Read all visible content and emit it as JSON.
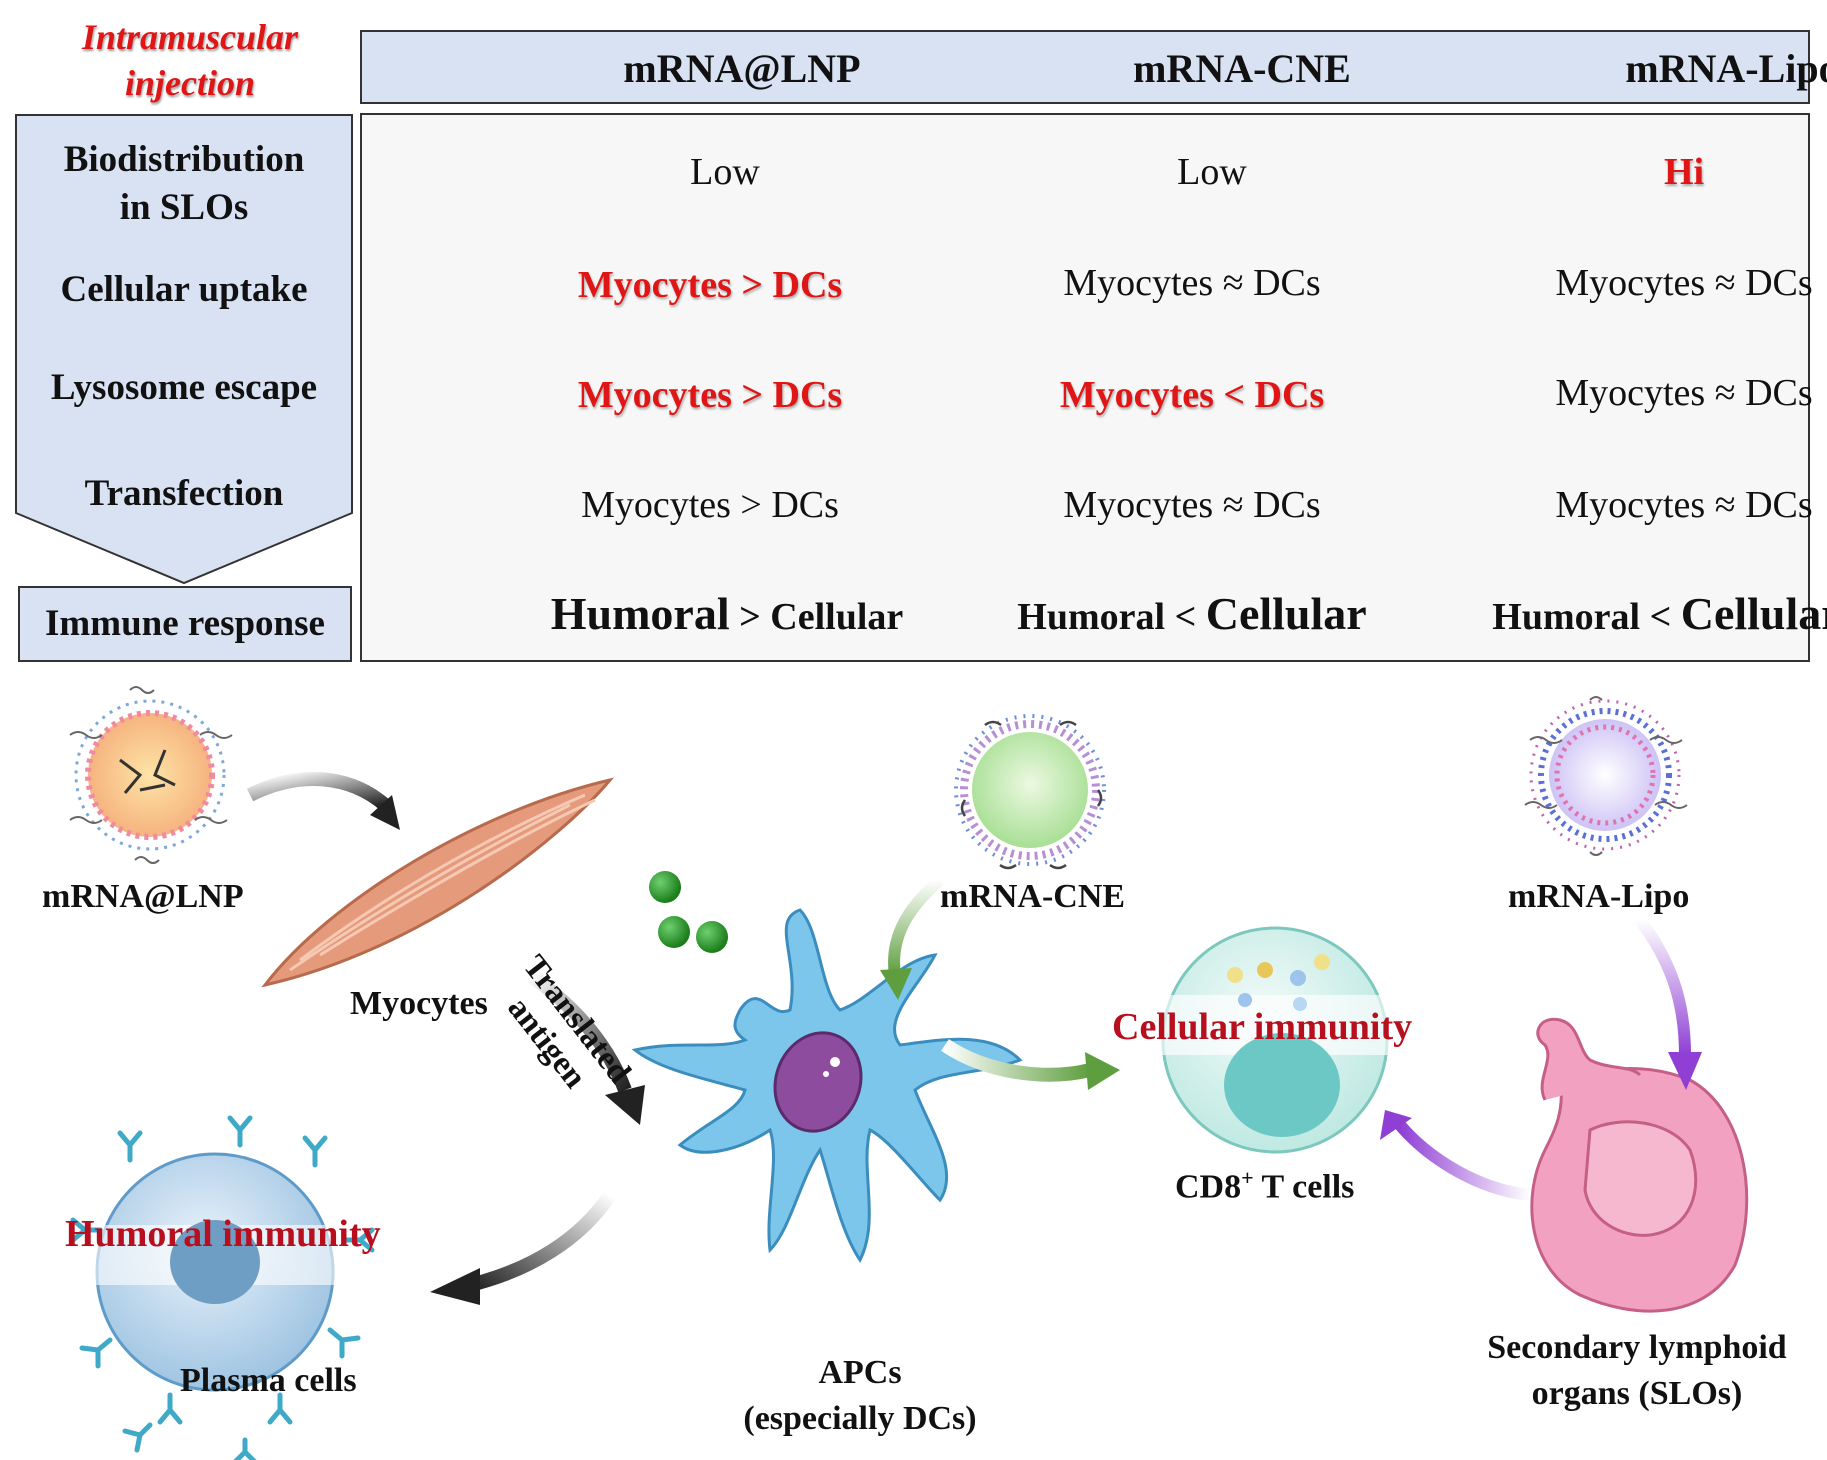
{
  "injection": {
    "line1": "Intramuscular",
    "line2": "injection"
  },
  "columns": [
    "mRNA@LNP",
    "mRNA-CNE",
    "mRNA-Lipo"
  ],
  "rows": [
    {
      "label_line1": "Biodistribution",
      "label_line2": "in SLOs",
      "cells": [
        "Low",
        "Low",
        "Hi"
      ]
    },
    {
      "label_line1": "Cellular uptake",
      "cells": [
        "Myocytes > DCs",
        "Myocytes ≈ DCs",
        "Myocytes ≈ DCs"
      ]
    },
    {
      "label_line1": "Lysosome escape",
      "cells": [
        "Myocytes > DCs",
        "Myocytes < DCs",
        "Myocytes ≈ DCs"
      ]
    },
    {
      "label_line1": "Transfection",
      "cells": [
        "Myocytes > DCs",
        "Myocytes ≈ DCs",
        "Myocytes ≈ DCs"
      ]
    }
  ],
  "immune": {
    "label": "Immune response",
    "cells": [
      {
        "a": "Humoral",
        "op": ">",
        "b": "Cellular"
      },
      {
        "a": "Humoral",
        "op": "<",
        "b": "Cellular"
      },
      {
        "a": "Humoral",
        "op": "<",
        "b": "Cellular"
      }
    ]
  },
  "diagram": {
    "lnp": "mRNA@LNP",
    "cne": "mRNA-CNE",
    "lipo": "mRNA-Lipo",
    "myocytes": "Myocytes",
    "antigen_line1": "Translated",
    "antigen_line2": "antigen",
    "apc_line1": "APCs",
    "apc_line2": "(especially DCs)",
    "humoral": "Humoral immunity",
    "plasma": "Plasma cells",
    "cellular": "Cellular immunity",
    "cd8_a": "CD8",
    "cd8_sup": "+",
    "cd8_b": " T cells",
    "slo_line1": "Secondary lymphoid",
    "slo_line2": "organs (SLOs)"
  },
  "colors": {
    "header_fill": "#d9e2f3",
    "highlight_red": "#e01515",
    "dark_red": "#b80f1e",
    "muscle": "#e59a7b",
    "dc_blue": "#7cc6ec",
    "green_arrow": "#6aa84f",
    "purple_arrow": "#9b4fd6",
    "organ_pink": "#f2a2c0"
  }
}
